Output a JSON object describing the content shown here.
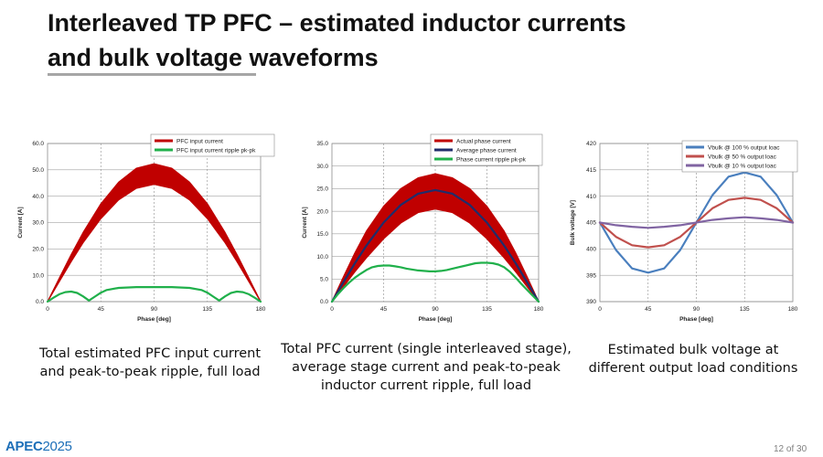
{
  "slide": {
    "title_line1": "Interleaved TP PFC – estimated inductor currents",
    "title_line2": "and bulk voltage waveforms",
    "footer_logo_text": "APEC",
    "footer_logo_year": "2025",
    "page_number": "12 of 30"
  },
  "captions": [
    {
      "line1": "Total estimated PFC input current",
      "line2": "and peak-to-peak ripple, full load",
      "line3": ""
    },
    {
      "line1": "Total PFC current (single interleaved stage),",
      "line2": "average stage current and peak-to-peak",
      "line3": "inductor current ripple, full load"
    },
    {
      "line1": "Estimated bulk voltage at",
      "line2": "different output load conditions",
      "line3": ""
    }
  ],
  "colors": {
    "red": "#c00000",
    "navy": "#1f2d6b",
    "green": "#20b04b",
    "blue": "#4a7fbe",
    "salmon": "#c0504d",
    "purple": "#8064a2"
  },
  "chart_data": [
    {
      "type": "line",
      "xlabel": "Phase [deg]",
      "ylabel": "Current [A]",
      "xlim": [
        0,
        180
      ],
      "ylim": [
        0,
        60
      ],
      "x_ticks": [
        "0",
        "45",
        "90",
        "135",
        "180"
      ],
      "y_ticks": [
        "0.0",
        "10.0",
        "20.0",
        "30.0",
        "40.0",
        "50.0",
        "60.0"
      ],
      "grid": true,
      "legend_position": "top-right",
      "series": [
        {
          "name": "PFC input current",
          "kind": "band",
          "color": "#c00000",
          "x": [
            0,
            10,
            20,
            30,
            45,
            60,
            75,
            90,
            105,
            120,
            135,
            150,
            160,
            170,
            180
          ],
          "low": [
            0,
            7.6,
            15.2,
            22.3,
            31.5,
            38.6,
            43.0,
            44.5,
            43.0,
            38.6,
            31.5,
            22.3,
            15.2,
            7.6,
            0
          ],
          "high": [
            0,
            9.0,
            17.9,
            26.2,
            37.1,
            45.3,
            50.6,
            52.3,
            50.6,
            45.3,
            37.1,
            26.2,
            17.9,
            9.0,
            0
          ]
        },
        {
          "name": "PFC input current ripple pk-pk",
          "kind": "line",
          "color": "#20b04b",
          "x": [
            0,
            5,
            10,
            15,
            20,
            25,
            30,
            35,
            40,
            45,
            50,
            60,
            75,
            90,
            105,
            120,
            130,
            135,
            140,
            145,
            150,
            155,
            160,
            165,
            170,
            175,
            180
          ],
          "values": [
            0,
            1.5,
            2.8,
            3.6,
            3.8,
            3.3,
            2.0,
            0.4,
            1.9,
            3.4,
            4.4,
            5.2,
            5.5,
            5.5,
            5.5,
            5.2,
            4.4,
            3.4,
            1.9,
            0.4,
            2.0,
            3.3,
            3.8,
            3.6,
            2.8,
            1.5,
            0
          ]
        }
      ]
    },
    {
      "type": "line",
      "xlabel": "Phase [deg]",
      "ylabel": "Current [A]",
      "xlim": [
        0,
        180
      ],
      "ylim": [
        0,
        35
      ],
      "x_ticks": [
        "0",
        "45",
        "90",
        "135",
        "180"
      ],
      "y_ticks": [
        "0.0",
        "5.0",
        "10.0",
        "15.0",
        "20.0",
        "25.0",
        "30.0",
        "35.0"
      ],
      "grid": true,
      "legend_position": "top-right",
      "series": [
        {
          "name": "Actual phase current",
          "kind": "band",
          "color": "#c00000",
          "x": [
            0,
            10,
            20,
            30,
            45,
            60,
            75,
            90,
            105,
            120,
            135,
            150,
            160,
            170,
            180
          ],
          "low": [
            0,
            3.3,
            6.6,
            9.7,
            13.9,
            17.4,
            19.7,
            20.5,
            19.7,
            17.4,
            13.9,
            9.7,
            6.6,
            3.3,
            0
          ],
          "high": [
            0,
            5.5,
            10.8,
            15.6,
            21.1,
            25.0,
            27.4,
            28.3,
            27.4,
            25.0,
            21.1,
            15.6,
            10.8,
            5.5,
            0
          ]
        },
        {
          "name": "Average phase current",
          "kind": "line",
          "color": "#1f2d6b",
          "x": [
            0,
            10,
            20,
            30,
            45,
            60,
            75,
            90,
            105,
            120,
            135,
            150,
            160,
            170,
            180
          ],
          "values": [
            0,
            4.3,
            8.5,
            12.4,
            17.5,
            21.4,
            23.9,
            24.7,
            23.9,
            21.4,
            17.5,
            12.4,
            8.5,
            4.3,
            0
          ]
        },
        {
          "name": "Phase current ripple pk-pk",
          "kind": "line",
          "color": "#20b04b",
          "x": [
            0,
            5,
            10,
            15,
            20,
            25,
            30,
            35,
            40,
            45,
            50,
            55,
            60,
            65,
            70,
            75,
            80,
            85,
            90,
            95,
            100,
            105,
            110,
            115,
            120,
            125,
            130,
            135,
            140,
            145,
            150,
            155,
            160,
            165,
            170,
            175,
            180
          ],
          "values": [
            0,
            1.6,
            3.0,
            4.2,
            5.3,
            6.2,
            7.0,
            7.6,
            7.9,
            8.0,
            8.0,
            7.8,
            7.6,
            7.3,
            7.1,
            6.9,
            6.8,
            6.7,
            6.7,
            6.8,
            7.0,
            7.3,
            7.6,
            7.9,
            8.2,
            8.5,
            8.6,
            8.6,
            8.5,
            8.2,
            7.6,
            6.6,
            5.3,
            3.9,
            2.6,
            1.3,
            0
          ]
        }
      ]
    },
    {
      "type": "line",
      "xlabel": "Phase [deg]",
      "ylabel": "Bulk voltage [V]",
      "xlim": [
        0,
        180
      ],
      "ylim": [
        390,
        420
      ],
      "x_ticks": [
        "0",
        "45",
        "90",
        "135",
        "180"
      ],
      "y_ticks": [
        "390",
        "395",
        "400",
        "405",
        "410",
        "415",
        "420"
      ],
      "grid": true,
      "legend_position": "top-right",
      "series": [
        {
          "name": "Vbulk @ 100 % output loac",
          "color": "#4a7fbe",
          "x": [
            0,
            15,
            30,
            45,
            60,
            75,
            90,
            105,
            120,
            135,
            150,
            165,
            180
          ],
          "values": [
            405,
            399.8,
            396.3,
            395.5,
            396.3,
            399.8,
            405,
            410.2,
            413.7,
            414.5,
            413.7,
            410.2,
            405
          ]
        },
        {
          "name": "Vbulk @ 50 % output loac",
          "color": "#c0504d",
          "x": [
            0,
            15,
            30,
            45,
            60,
            75,
            90,
            105,
            120,
            135,
            150,
            165,
            180
          ],
          "values": [
            405,
            402.3,
            400.7,
            400.3,
            400.7,
            402.3,
            405,
            407.7,
            409.3,
            409.7,
            409.3,
            407.7,
            405
          ]
        },
        {
          "name": "Vbulk @ 10 % output loac",
          "color": "#8064a2",
          "x": [
            0,
            15,
            30,
            45,
            60,
            75,
            90,
            105,
            120,
            135,
            150,
            165,
            180
          ],
          "values": [
            405,
            404.5,
            404.2,
            404.0,
            404.2,
            404.5,
            405,
            405.5,
            405.8,
            406.0,
            405.8,
            405.5,
            405
          ]
        }
      ]
    }
  ]
}
